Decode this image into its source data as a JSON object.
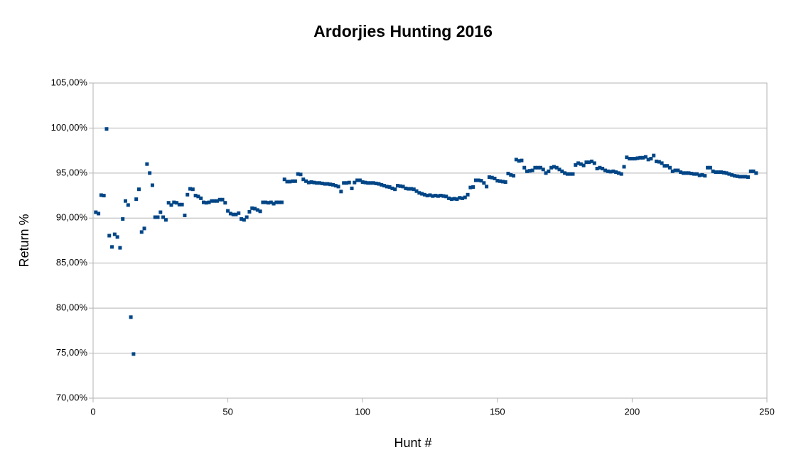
{
  "chart_data": {
    "type": "scatter",
    "title": "Ardorjies Hunting 2016",
    "xlabel": "Hunt #",
    "ylabel": "Return %",
    "color": "#004586",
    "grid": true,
    "xlim": [
      0,
      250
    ],
    "xticks": [
      0,
      50,
      100,
      150,
      200,
      250
    ],
    "ylim": [
      70,
      105
    ],
    "yticks": [
      {
        "value": 70,
        "label": "70,00%"
      },
      {
        "value": 75,
        "label": "75,00%"
      },
      {
        "value": 80,
        "label": "80,00%"
      },
      {
        "value": 85,
        "label": "85,00%"
      },
      {
        "value": 90,
        "label": "90,00%"
      },
      {
        "value": 95,
        "label": "95,00%"
      },
      {
        "value": 100,
        "label": "100,00%"
      },
      {
        "value": 105,
        "label": "105,00%"
      }
    ],
    "x": [
      1,
      2,
      3,
      4,
      5,
      6,
      7,
      8,
      9,
      10,
      11,
      12,
      13,
      14,
      15,
      16,
      17,
      18,
      19,
      20,
      21,
      22,
      23,
      24,
      25,
      26,
      27,
      28,
      29,
      30,
      31,
      32,
      33,
      34,
      35,
      36,
      37,
      38,
      39,
      40,
      41,
      42,
      43,
      44,
      45,
      46,
      47,
      48,
      49,
      50,
      51,
      52,
      53,
      54,
      55,
      56,
      57,
      58,
      59,
      60,
      61,
      62,
      63,
      64,
      65,
      66,
      67,
      68,
      69,
      70,
      71,
      72,
      73,
      74,
      75,
      76,
      77,
      78,
      79,
      80,
      81,
      82,
      83,
      84,
      85,
      86,
      87,
      88,
      89,
      90,
      91,
      92,
      93,
      94,
      95,
      96,
      97,
      98,
      99,
      100,
      101,
      102,
      103,
      104,
      105,
      106,
      107,
      108,
      109,
      110,
      111,
      112,
      113,
      114,
      115,
      116,
      117,
      118,
      119,
      120,
      121,
      122,
      123,
      124,
      125,
      126,
      127,
      128,
      129,
      130,
      131,
      132,
      133,
      134,
      135,
      136,
      137,
      138,
      139,
      140,
      141,
      142,
      143,
      144,
      145,
      146,
      147,
      148,
      149,
      150,
      151,
      152,
      153,
      154,
      155,
      156,
      157,
      158,
      159,
      160,
      161,
      162,
      163,
      164,
      165,
      166,
      167,
      168,
      169,
      170,
      171,
      172,
      173,
      174,
      175,
      176,
      177,
      178,
      179,
      180,
      181,
      182,
      183,
      184,
      185,
      186,
      187,
      188,
      189,
      190,
      191,
      192,
      193,
      194,
      195,
      196,
      197,
      198,
      199,
      200,
      201,
      202,
      203,
      204,
      205,
      206,
      207,
      208,
      209,
      210,
      211,
      212,
      213,
      214,
      215,
      216,
      217,
      218,
      219,
      220,
      221,
      222,
      223,
      224,
      225,
      226,
      227,
      228,
      229,
      230,
      231,
      232,
      233,
      234,
      235,
      236,
      237,
      238,
      239,
      240,
      241,
      242,
      243,
      244,
      245,
      246
    ],
    "values": [
      90.65,
      90.5,
      92.55,
      92.5,
      99.9,
      88.05,
      86.8,
      88.2,
      87.9,
      86.7,
      89.9,
      91.9,
      91.45,
      79.0,
      74.9,
      92.1,
      93.2,
      88.45,
      88.85,
      96.0,
      95.0,
      93.65,
      90.1,
      90.1,
      90.65,
      90.1,
      89.8,
      91.7,
      91.45,
      91.75,
      91.7,
      91.5,
      91.5,
      90.3,
      92.6,
      93.25,
      93.2,
      92.5,
      92.4,
      92.2,
      91.75,
      91.7,
      91.75,
      91.9,
      91.9,
      91.9,
      92.05,
      92.05,
      91.7,
      90.8,
      90.5,
      90.4,
      90.4,
      90.55,
      89.9,
      89.8,
      90.1,
      90.7,
      91.1,
      91.05,
      90.9,
      90.75,
      91.75,
      91.75,
      91.7,
      91.75,
      91.6,
      91.75,
      91.75,
      91.75,
      94.3,
      94.05,
      94.05,
      94.1,
      94.1,
      94.9,
      94.85,
      94.3,
      94.1,
      93.95,
      94.0,
      93.95,
      93.9,
      93.9,
      93.85,
      93.8,
      93.8,
      93.75,
      93.7,
      93.6,
      93.5,
      92.95,
      93.9,
      93.9,
      93.95,
      93.3,
      93.95,
      94.2,
      94.2,
      94.0,
      93.95,
      93.9,
      93.9,
      93.9,
      93.85,
      93.8,
      93.7,
      93.6,
      93.5,
      93.45,
      93.3,
      93.2,
      93.6,
      93.55,
      93.5,
      93.3,
      93.25,
      93.25,
      93.2,
      93.0,
      92.8,
      92.7,
      92.6,
      92.5,
      92.55,
      92.45,
      92.5,
      92.45,
      92.5,
      92.45,
      92.4,
      92.2,
      92.1,
      92.15,
      92.1,
      92.25,
      92.2,
      92.3,
      92.6,
      93.4,
      93.45,
      94.2,
      94.2,
      94.15,
      93.9,
      93.5,
      94.55,
      94.5,
      94.4,
      94.15,
      94.1,
      94.05,
      94.0,
      94.95,
      94.8,
      94.7,
      96.5,
      96.35,
      96.4,
      95.6,
      95.2,
      95.25,
      95.3,
      95.6,
      95.6,
      95.6,
      95.4,
      95.0,
      95.2,
      95.6,
      95.7,
      95.6,
      95.4,
      95.2,
      95.0,
      94.9,
      94.9,
      94.9,
      95.9,
      96.1,
      96.0,
      95.85,
      96.2,
      96.2,
      96.3,
      96.1,
      95.5,
      95.6,
      95.5,
      95.3,
      95.2,
      95.15,
      95.2,
      95.1,
      95.0,
      94.9,
      95.7,
      96.75,
      96.6,
      96.6,
      96.6,
      96.65,
      96.7,
      96.7,
      96.8,
      96.5,
      96.6,
      96.95,
      96.3,
      96.25,
      96.1,
      95.8,
      95.8,
      95.6,
      95.2,
      95.3,
      95.3,
      95.1,
      95.0,
      95.0,
      95.0,
      94.95,
      94.9,
      94.9,
      94.75,
      94.8,
      94.7,
      95.6,
      95.6,
      95.2,
      95.1,
      95.1,
      95.1,
      95.05,
      95.0,
      94.9,
      94.8,
      94.7,
      94.65,
      94.6,
      94.6,
      94.6,
      94.55,
      95.2,
      95.2,
      95.0
    ]
  }
}
